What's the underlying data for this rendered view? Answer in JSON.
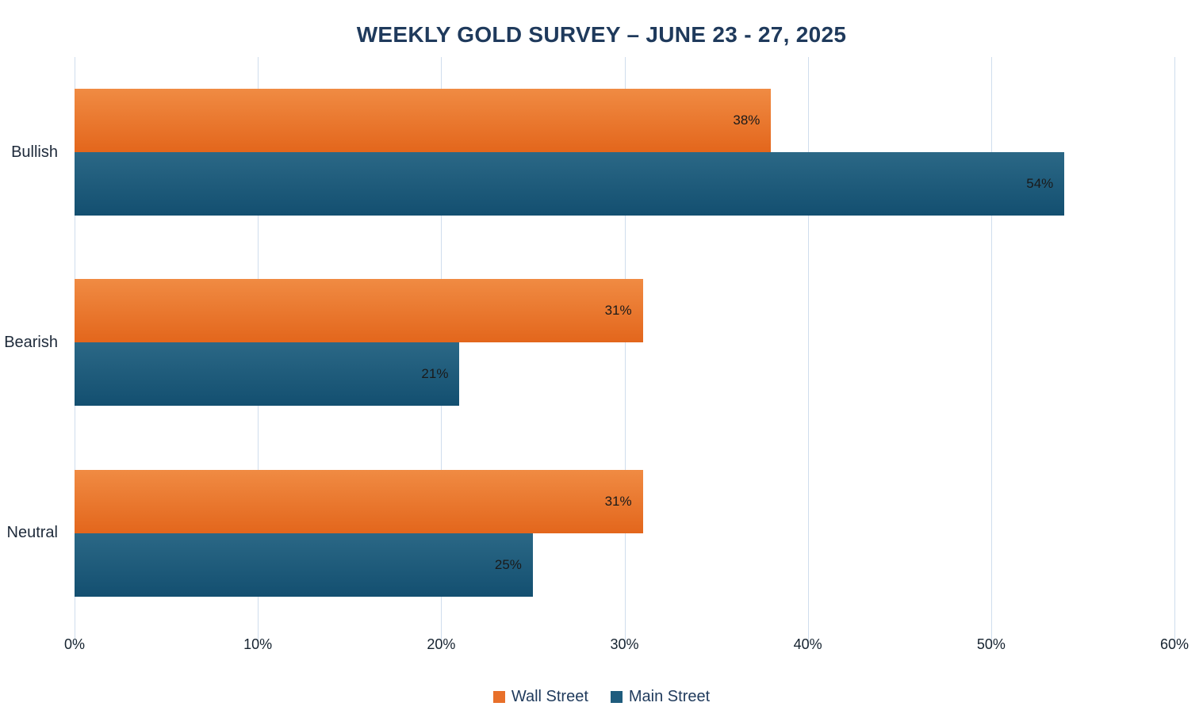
{
  "chart_data": {
    "type": "bar",
    "orientation": "horizontal",
    "title": "WEEKLY GOLD SURVEY – JUNE 23 - 27, 2025",
    "categories": [
      "Bullish",
      "Bearish",
      "Neutral"
    ],
    "series": [
      {
        "name": "Wall Street",
        "color": "#E8702A",
        "color_top": "#F08B43",
        "color_bottom": "#E3661C",
        "values": [
          38,
          31,
          31
        ]
      },
      {
        "name": "Main Street",
        "color": "#1F5C7D",
        "color_top": "#2B6886",
        "color_bottom": "#134F70",
        "values": [
          54,
          21,
          25
        ]
      }
    ],
    "value_suffix": "%",
    "xlim": [
      0,
      60
    ],
    "x_ticks": [
      0,
      10,
      20,
      30,
      40,
      50,
      60
    ],
    "x_tick_labels": [
      "0%",
      "10%",
      "20%",
      "30%",
      "40%",
      "50%",
      "60%"
    ],
    "grid": true,
    "gridline_color": "#CFDDED",
    "data_label_color": "#1A1A1A",
    "legend_position": "bottom"
  }
}
